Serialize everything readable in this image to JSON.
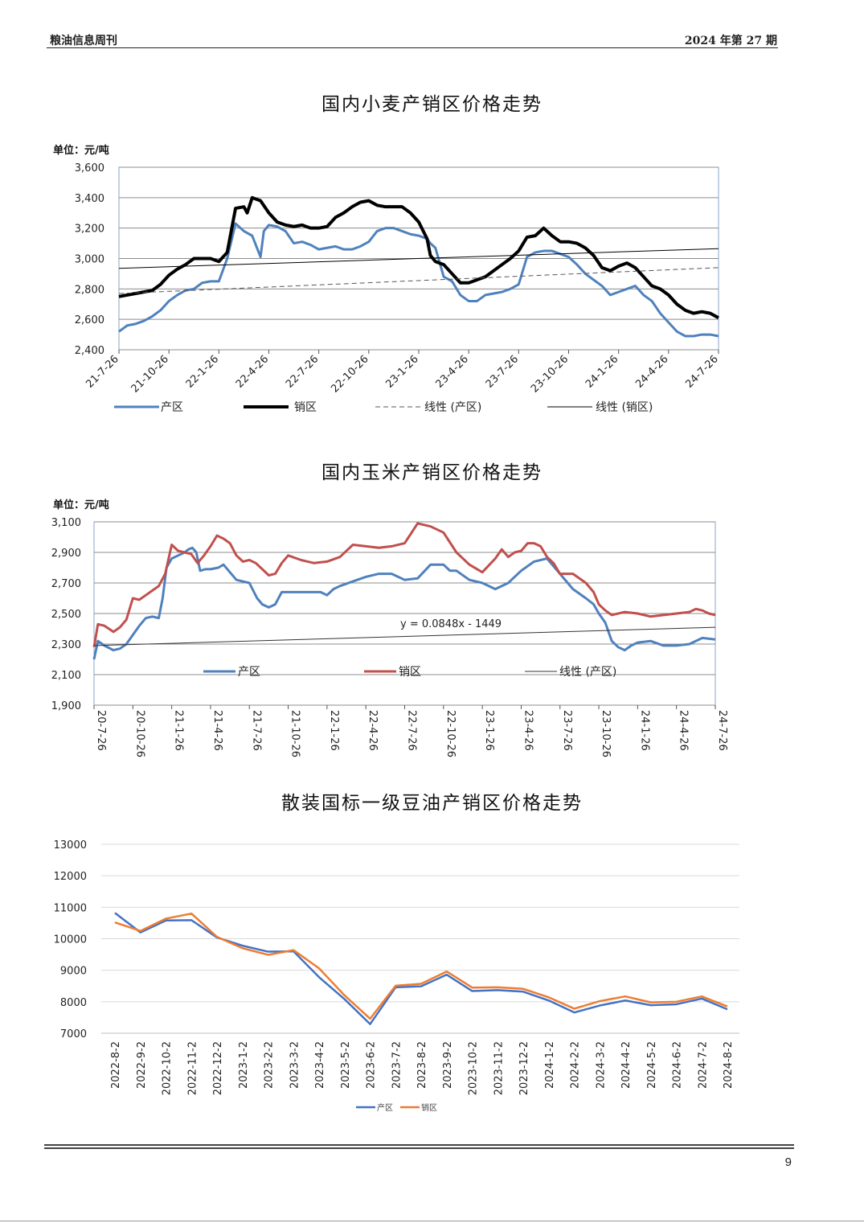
{
  "header": {
    "left": "粮油信息周刊",
    "right": "2024 年第 27 期"
  },
  "page_number": "9",
  "chart_data": [
    {
      "type": "line",
      "title": "国内小麦产销区价格走势",
      "unit": "单位：元/吨",
      "ylim": [
        2400,
        3600
      ],
      "yticks": [
        "2,400",
        "2,600",
        "2,800",
        "3,000",
        "3,200",
        "3,400",
        "3,600"
      ],
      "xlim": [
        0,
        36
      ],
      "xticks": [
        "21-7-26",
        "21-10-26",
        "22-1-26",
        "22-4-26",
        "22-7-26",
        "22-10-26",
        "23-1-26",
        "23-4-26",
        "23-7-26",
        "23-10-26",
        "24-1-26",
        "24-4-26",
        "24-7-26"
      ],
      "grid": true,
      "legend": "bottom",
      "series": [
        {
          "name": "产区",
          "color": "#4f81bd",
          "x": [
            0,
            0.5,
            1,
            1.5,
            2,
            2.5,
            3,
            3.5,
            4,
            4.5,
            5,
            5.5,
            6,
            6.5,
            7,
            7.5,
            8,
            8.5,
            8.7,
            9,
            9.5,
            10,
            10.5,
            11,
            11.5,
            12,
            12.5,
            13,
            13.5,
            14,
            14.5,
            15,
            15.5,
            16,
            16.5,
            17,
            17.5,
            18,
            18.5,
            18.7,
            19,
            19.5,
            20,
            20.5,
            21,
            21.5,
            22,
            22.5,
            23,
            23.5,
            24,
            24.5,
            25,
            25.5,
            26,
            26.5,
            27,
            27.5,
            28,
            28.5,
            29,
            29.5,
            30,
            30.5,
            31,
            31.5,
            32,
            32.5,
            33,
            33.5,
            34,
            34.5,
            35,
            35.5,
            36
          ],
          "y": [
            2520,
            2560,
            2570,
            2590,
            2620,
            2660,
            2720,
            2760,
            2790,
            2800,
            2840,
            2850,
            2850,
            3000,
            3230,
            3180,
            3150,
            3010,
            3180,
            3220,
            3210,
            3180,
            3100,
            3110,
            3090,
            3060,
            3070,
            3080,
            3060,
            3060,
            3080,
            3110,
            3180,
            3200,
            3200,
            3180,
            3160,
            3150,
            3130,
            3100,
            3070,
            2880,
            2850,
            2760,
            2720,
            2720,
            2760,
            2770,
            2780,
            2800,
            2830,
            3010,
            3040,
            3050,
            3050,
            3030,
            3010,
            2960,
            2900,
            2860,
            2820,
            2760,
            2780,
            2800,
            2820,
            2760,
            2720,
            2640,
            2580,
            2520,
            2490,
            2490,
            2500,
            2500,
            2490
          ]
        },
        {
          "name": "销区",
          "color": "#000000",
          "x": [
            0,
            0.5,
            1,
            1.5,
            2,
            2.5,
            3,
            3.5,
            4,
            4.5,
            5,
            5.5,
            6,
            6.5,
            7,
            7.5,
            7.7,
            8,
            8.5,
            9,
            9.5,
            10,
            10.5,
            11,
            11.5,
            12,
            12.5,
            13,
            13.5,
            14,
            14.5,
            15,
            15.5,
            16,
            16.5,
            17,
            17.5,
            18,
            18.5,
            18.7,
            19,
            19.5,
            20,
            20.5,
            21,
            21.5,
            22,
            22.5,
            23,
            23.5,
            24,
            24.5,
            25,
            25.5,
            26,
            26.5,
            27,
            27.5,
            28,
            28.5,
            29,
            29.5,
            30,
            30.5,
            31,
            31.5,
            32,
            32.5,
            33,
            33.5,
            34,
            34.5,
            35,
            35.5,
            36
          ],
          "y": [
            2750,
            2760,
            2770,
            2780,
            2790,
            2830,
            2890,
            2930,
            2960,
            3000,
            3000,
            3000,
            2980,
            3040,
            3330,
            3340,
            3300,
            3400,
            3380,
            3300,
            3240,
            3220,
            3210,
            3220,
            3200,
            3200,
            3210,
            3270,
            3300,
            3340,
            3370,
            3380,
            3350,
            3340,
            3340,
            3340,
            3300,
            3240,
            3130,
            3020,
            2980,
            2960,
            2900,
            2840,
            2840,
            2860,
            2880,
            2920,
            2960,
            3000,
            3050,
            3140,
            3150,
            3200,
            3150,
            3110,
            3110,
            3100,
            3070,
            3020,
            2940,
            2920,
            2950,
            2970,
            2940,
            2880,
            2820,
            2800,
            2760,
            2700,
            2660,
            2640,
            2650,
            2640,
            2610
          ]
        },
        {
          "name": "线性 (产区)",
          "color": "#555555",
          "dash": true,
          "x": [
            0,
            36
          ],
          "y": [
            2770,
            2940
          ]
        },
        {
          "name": "线性 (销区)",
          "color": "#000000",
          "x": [
            0,
            36
          ],
          "y": [
            2935,
            3065
          ]
        }
      ]
    },
    {
      "type": "line",
      "title": "国内玉米产销区价格走势",
      "unit": "单位：元/吨",
      "ylim": [
        1900,
        3100
      ],
      "yticks": [
        "1,900",
        "2,100",
        "2,300",
        "2,500",
        "2,700",
        "2,900",
        "3,100"
      ],
      "xlim": [
        0,
        48
      ],
      "xticks": [
        "20-7-26",
        "20-10-26",
        "21-1-26",
        "21-4-26",
        "21-7-26",
        "21-10-26",
        "22-1-26",
        "22-4-26",
        "22-7-26",
        "22-10-26",
        "23-1-26",
        "23-4-26",
        "23-7-26",
        "23-10-26",
        "24-1-26",
        "24-4-26",
        "24-7-26"
      ],
      "grid": true,
      "legend": "inside",
      "annotation": "y = 0.0848x - 1449",
      "series": [
        {
          "name": "产区",
          "color": "#4f81bd",
          "x": [
            0,
            0.3,
            0.8,
            1.5,
            2,
            2.5,
            3,
            3.5,
            4,
            4.5,
            5,
            5.3,
            5.6,
            6,
            6.5,
            7,
            7.3,
            7.6,
            7.9,
            8.2,
            8.6,
            9,
            9.6,
            10,
            11,
            12,
            12.6,
            13,
            13.5,
            14,
            14.5,
            15,
            16,
            17,
            17.5,
            18,
            18.5,
            19,
            20,
            21,
            22,
            23,
            24,
            25,
            26,
            27,
            27.5,
            28,
            29,
            30,
            31,
            32,
            33,
            34,
            35,
            36,
            37,
            38,
            38.6,
            39,
            39.5,
            40,
            40.5,
            41,
            41.5,
            42,
            43,
            44,
            45,
            46,
            47,
            48
          ],
          "y": [
            2200,
            2320,
            2290,
            2260,
            2270,
            2300,
            2360,
            2420,
            2470,
            2480,
            2470,
            2600,
            2800,
            2860,
            2880,
            2900,
            2920,
            2930,
            2900,
            2780,
            2790,
            2790,
            2800,
            2820,
            2720,
            2700,
            2600,
            2560,
            2540,
            2560,
            2640,
            2640,
            2640,
            2640,
            2640,
            2620,
            2660,
            2680,
            2710,
            2740,
            2760,
            2760,
            2720,
            2730,
            2820,
            2820,
            2780,
            2780,
            2720,
            2700,
            2660,
            2700,
            2780,
            2840,
            2860,
            2760,
            2660,
            2600,
            2560,
            2500,
            2440,
            2320,
            2280,
            2260,
            2290,
            2310,
            2320,
            2290,
            2290,
            2300,
            2340,
            2330
          ]
        },
        {
          "name": "销区",
          "color": "#c0504d",
          "x": [
            0,
            0.3,
            0.8,
            1.5,
            2,
            2.5,
            3,
            3.5,
            4,
            4.5,
            5,
            5.5,
            6,
            6.5,
            7,
            7.5,
            8,
            8.5,
            9,
            9.5,
            10,
            10.5,
            11,
            11.5,
            12,
            12.5,
            13,
            13.5,
            14,
            14.5,
            15,
            16,
            17,
            18,
            19,
            20,
            21,
            22,
            23,
            24,
            25,
            26,
            27,
            28,
            29,
            30,
            31,
            31.5,
            32,
            32.5,
            33,
            33.5,
            34,
            34.5,
            35,
            35.5,
            36,
            37,
            38,
            38.6,
            39,
            39.5,
            40,
            41,
            42,
            43,
            44,
            45,
            46,
            46.5,
            47,
            47.5,
            48
          ],
          "y": [
            2280,
            2430,
            2420,
            2380,
            2410,
            2460,
            2600,
            2590,
            2620,
            2650,
            2680,
            2760,
            2950,
            2910,
            2900,
            2890,
            2830,
            2880,
            2940,
            3010,
            2990,
            2960,
            2880,
            2840,
            2850,
            2830,
            2790,
            2750,
            2760,
            2830,
            2880,
            2850,
            2830,
            2840,
            2870,
            2950,
            2940,
            2930,
            2940,
            2960,
            3090,
            3070,
            3030,
            2900,
            2820,
            2770,
            2860,
            2920,
            2870,
            2900,
            2910,
            2960,
            2960,
            2940,
            2870,
            2830,
            2760,
            2760,
            2700,
            2640,
            2560,
            2520,
            2490,
            2510,
            2500,
            2480,
            2490,
            2500,
            2510,
            2530,
            2520,
            2500,
            2490
          ]
        },
        {
          "name": "线性 (产区)",
          "color": "#333333",
          "x": [
            0,
            48
          ],
          "y": [
            2290,
            2410
          ]
        }
      ]
    },
    {
      "type": "line",
      "title": "散装国标一级豆油产销区价格走势",
      "ylim": [
        7000,
        13000
      ],
      "yticks": [
        "7000",
        "8000",
        "9000",
        "10000",
        "11000",
        "12000",
        "13000"
      ],
      "categories": [
        "2022-8-2",
        "2022-9-2",
        "2022-10-2",
        "2022-11-2",
        "2022-12-2",
        "2023-1-2",
        "2023-2-2",
        "2023-3-2",
        "2023-4-2",
        "2023-5-2",
        "2023-6-2",
        "2023-7-2",
        "2023-8-2",
        "2023-9-2",
        "2023-10-2",
        "2023-11-2",
        "2023-12-2",
        "2024-1-2",
        "2024-2-2",
        "2024-3-2",
        "2024-4-2",
        "2024-5-2",
        "2024-6-2",
        "2024-7-2",
        "2024-8-2"
      ],
      "grid": true,
      "legend": "bottom",
      "series": [
        {
          "name": "产区",
          "color": "#4472c4",
          "values": [
            10820,
            10200,
            10580,
            10590,
            10040,
            9780,
            9590,
            9600,
            8780,
            8080,
            7290,
            8460,
            8490,
            8860,
            8340,
            8370,
            8320,
            8040,
            7660,
            7880,
            8040,
            7890,
            7920,
            8100,
            7760
          ]
        },
        {
          "name": "销区",
          "color": "#ed7d31",
          "values": [
            10520,
            10250,
            10640,
            10800,
            10060,
            9700,
            9490,
            9640,
            9060,
            8200,
            7460,
            8510,
            8570,
            8960,
            8450,
            8460,
            8410,
            8140,
            7780,
            8020,
            8170,
            7980,
            8000,
            8170,
            7850
          ]
        }
      ]
    }
  ]
}
